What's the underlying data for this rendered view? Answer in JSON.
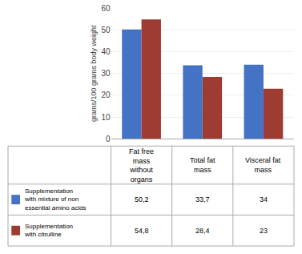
{
  "chart_data": {
    "type": "bar",
    "categories": [
      "Fat free\nmass\nwithout\norgans",
      "Total fat\nmass",
      "Visceral fat\nmass"
    ],
    "series": [
      {
        "name": "Supplementation\nwith mixture of non\nessential amino acids",
        "color": "#4472C4",
        "values": [
          50.2,
          33.7,
          34
        ],
        "value_labels": [
          "50,2",
          "33,7",
          "34"
        ]
      },
      {
        "name": "Supplementation\nwith citrulline",
        "color": "#9E3B32",
        "values": [
          54.8,
          28.4,
          23
        ],
        "value_labels": [
          "54,8",
          "28,4",
          "23"
        ]
      }
    ],
    "ylabel": "grams/100 grams body weight",
    "ylim": [
      0,
      60
    ],
    "yticks": [
      0,
      10,
      20,
      30,
      40,
      50,
      60
    ],
    "grid": true,
    "tick_labels": "y"
  }
}
